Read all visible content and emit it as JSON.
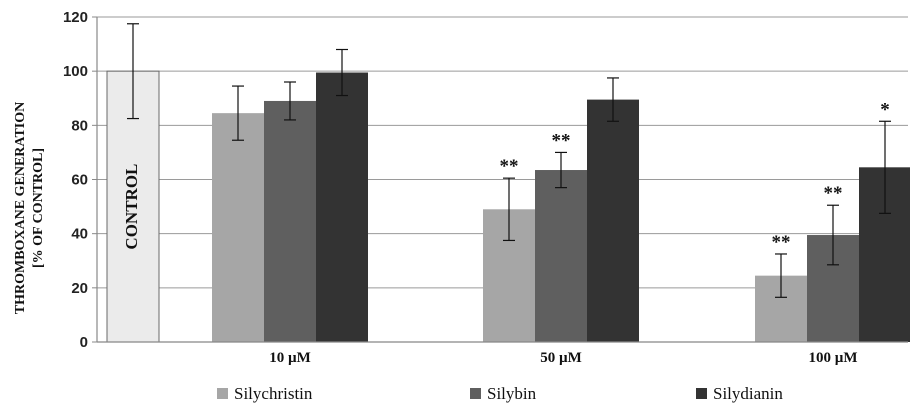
{
  "chart_data": {
    "type": "bar",
    "title": "",
    "ylabel_line1": "THROMBOXANE GENERATION",
    "ylabel_line2": "[% OF CONTROL]",
    "ylim": [
      0,
      120
    ],
    "yticks": [
      0,
      20,
      40,
      60,
      80,
      100,
      120
    ],
    "grid": true,
    "legend_position": "bottom",
    "control": {
      "label": "CONTROL",
      "value": 100,
      "error": 17.5,
      "color": "#ebebeb"
    },
    "categories": [
      "10 µM",
      "50 µM",
      "100 µM"
    ],
    "series": [
      {
        "name": "Silychristin",
        "color": "#a6a6a6",
        "values": [
          84.5,
          49,
          24.5
        ],
        "errors": [
          10,
          11.5,
          8
        ],
        "significance": [
          "",
          "**",
          "**"
        ]
      },
      {
        "name": "Silybin",
        "color": "#5f5f5f",
        "values": [
          89,
          63.5,
          39.5
        ],
        "errors": [
          7,
          6.5,
          11
        ],
        "significance": [
          "",
          "**",
          "**"
        ]
      },
      {
        "name": "Silydianin",
        "color": "#333333",
        "values": [
          99.5,
          89.5,
          64.5
        ],
        "errors": [
          8.5,
          8,
          17
        ],
        "significance": [
          "",
          "",
          "*"
        ]
      }
    ]
  }
}
